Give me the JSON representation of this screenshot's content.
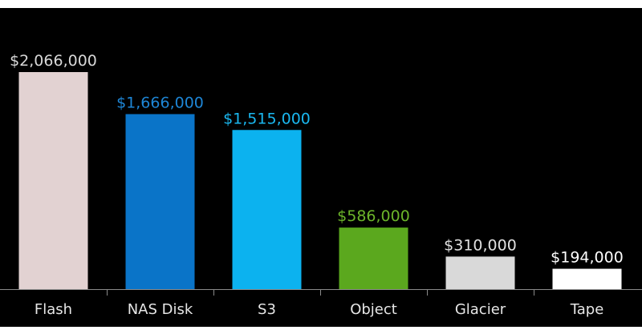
{
  "chart_data": {
    "type": "bar",
    "title": "",
    "xlabel": "",
    "ylabel": "",
    "ylim": [
      0,
      2066000
    ],
    "grid": false,
    "legend": "none",
    "categories": [
      "Flash",
      "NAS Disk",
      "S3",
      "Object",
      "Glacier",
      "Tape"
    ],
    "values": [
      2066000,
      1666000,
      1515000,
      586000,
      310000,
      194000
    ],
    "data_labels": [
      "$2,066,000",
      "$1,666,000",
      "$1,515,000",
      "$586,000",
      "$310,000",
      "$194,000"
    ],
    "bar_colors": [
      "#e2d2d2",
      "#0a74c8",
      "#0cb2ef",
      "#5ba81e",
      "#d9d9d9",
      "#ffffff"
    ],
    "label_colors": [
      "#d8d8d8",
      "#1e86d6",
      "#1ab8f0",
      "#6cb52a",
      "#e0e0e0",
      "#ffffff"
    ],
    "background": "#000000"
  }
}
